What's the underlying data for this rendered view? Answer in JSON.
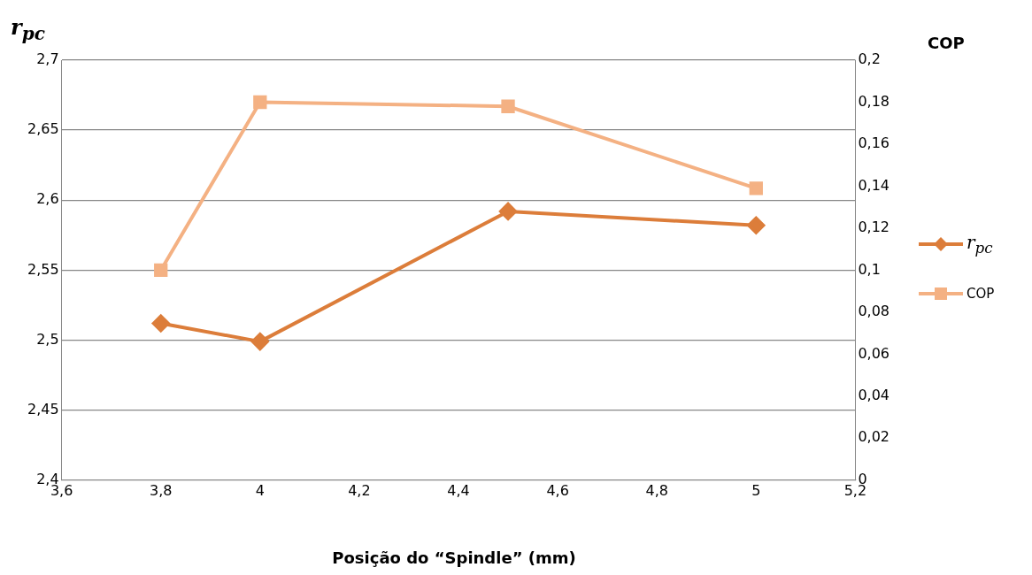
{
  "chart_data": {
    "type": "line",
    "xlabel": "Posição do “Spindle” (mm)",
    "ylabel": "r$_{pc}$",
    "y2label": "COP",
    "x": [
      3.8,
      4,
      4.5,
      5
    ],
    "series": [
      {
        "name": "r$_{pc}$",
        "color": "#dc7d3a",
        "values": [
          2.512,
          2.499,
          2.592,
          2.582
        ],
        "marker": "diamond"
      },
      {
        "name": "COP",
        "color": "#f4b183",
        "values": [
          0.1,
          0.18,
          0.178,
          0.139
        ],
        "axis": "y2",
        "marker": "square"
      }
    ],
    "xlim": [
      3.6,
      5.2
    ],
    "xticks": [
      {
        "value": 3.6,
        "label": "3,6"
      },
      {
        "value": 3.8,
        "label": "3,8"
      },
      {
        "value": 4,
        "label": "4"
      },
      {
        "value": 4.2,
        "label": "4,2"
      },
      {
        "value": 4.4,
        "label": "4,4"
      },
      {
        "value": 4.6,
        "label": "4,6"
      },
      {
        "value": 4.8,
        "label": "4,8"
      },
      {
        "value": 5,
        "label": "5"
      },
      {
        "value": 5.2,
        "label": "5,2"
      }
    ],
    "ylim": [
      2.4,
      2.7
    ],
    "yticks": [
      {
        "value": 2.4,
        "label": "2,4"
      },
      {
        "value": 2.45,
        "label": "2,45"
      },
      {
        "value": 2.5,
        "label": "2,5"
      },
      {
        "value": 2.55,
        "label": "2,55"
      },
      {
        "value": 2.6,
        "label": "2,6"
      },
      {
        "value": 2.65,
        "label": "2,65"
      },
      {
        "value": 2.7,
        "label": "2,7"
      }
    ],
    "y2lim": [
      0,
      0.2
    ],
    "y2ticks": [
      0,
      {
        "value": 0.02,
        "label": "0,02"
      },
      {
        "value": 0.04,
        "label": "0,04"
      },
      {
        "value": 0.06,
        "label": "0,06"
      },
      {
        "value": 0.08,
        "label": "0,08"
      },
      {
        "value": 0.1,
        "label": "0,1"
      },
      {
        "value": 0.12,
        "label": "0,12"
      },
      {
        "value": 0.14,
        "label": "0,14"
      },
      {
        "value": 0.16,
        "label": "0,16"
      },
      {
        "value": 0.18,
        "label": "0,18"
      },
      {
        "value": 0.2,
        "label": "0,2"
      }
    ],
    "grid": "y",
    "legend": "right",
    "line_style": "solid"
  }
}
